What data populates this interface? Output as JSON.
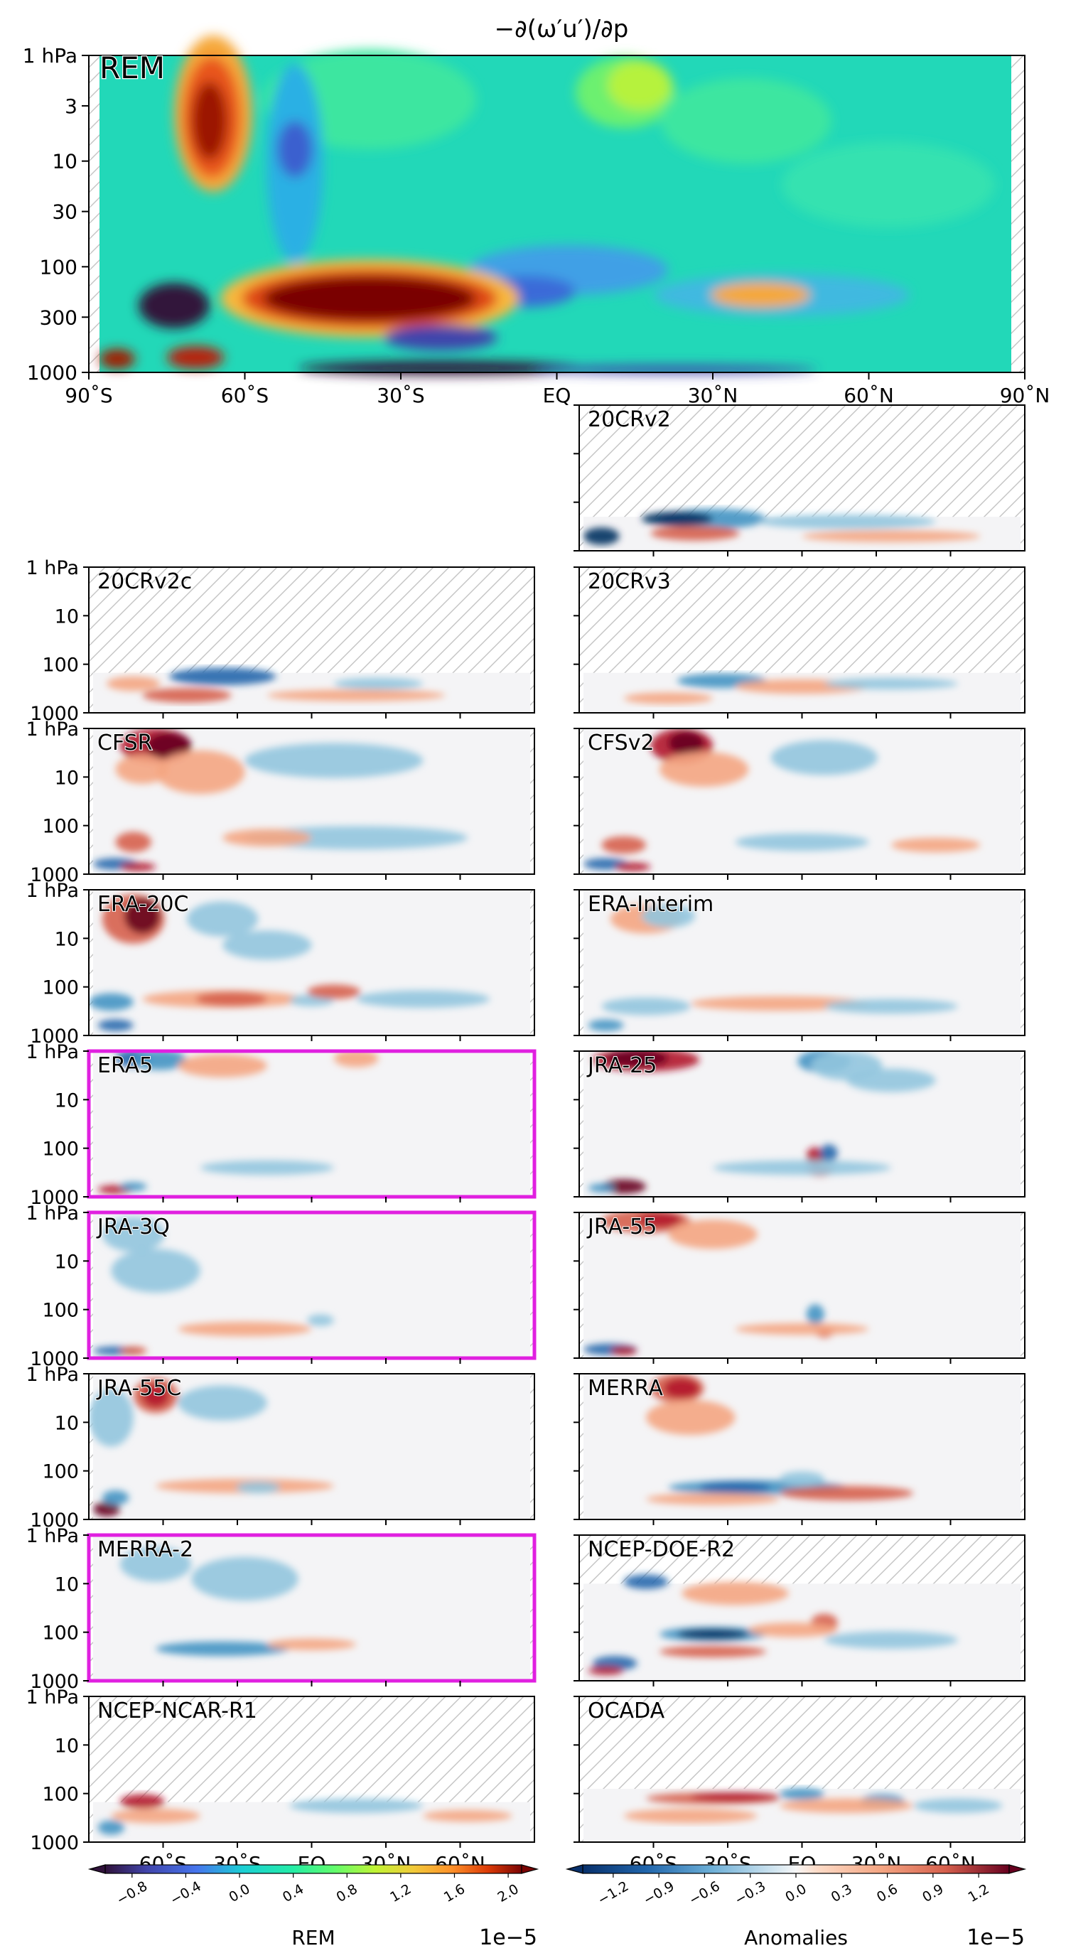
{
  "chart_data": {
    "type": "heatmap",
    "title": "−∂(ω′u′)/∂p",
    "main_panel": {
      "label": "REM",
      "label_color": "#e020e0",
      "yticks": [
        "1 hPa",
        "3",
        "10",
        "30",
        "100",
        "300",
        "1000"
      ],
      "yticks_values": [
        1,
        3,
        10,
        30,
        100,
        300,
        1000
      ],
      "xticks": [
        "90˚S",
        "60˚S",
        "30˚S",
        "EQ",
        "30˚N",
        "60˚N",
        "90˚N"
      ],
      "xticks_values": [
        -90,
        -60,
        -30,
        0,
        30,
        60,
        90
      ],
      "ylim": [
        1000,
        1
      ],
      "xlim": [
        -90,
        90
      ],
      "log_y": true
    },
    "panels": [
      {
        "name": "20CRv2",
        "top_hpa": 200,
        "highlight": false
      },
      {
        "name": "20CRv2c",
        "top_hpa": 150,
        "highlight": false
      },
      {
        "name": "20CRv3",
        "top_hpa": 150,
        "highlight": false
      },
      {
        "name": "CFSR",
        "top_hpa": 1,
        "highlight": false
      },
      {
        "name": "CFSv2",
        "top_hpa": 1,
        "highlight": false
      },
      {
        "name": "ERA-20C",
        "top_hpa": 1,
        "highlight": false
      },
      {
        "name": "ERA-Interim",
        "top_hpa": 1,
        "highlight": false
      },
      {
        "name": "ERA5",
        "top_hpa": 1,
        "highlight": true
      },
      {
        "name": "JRA-25",
        "top_hpa": 1,
        "highlight": false
      },
      {
        "name": "JRA-3Q",
        "top_hpa": 1,
        "highlight": true
      },
      {
        "name": "JRA-55",
        "top_hpa": 1,
        "highlight": false
      },
      {
        "name": "JRA-55C",
        "top_hpa": 1,
        "highlight": false
      },
      {
        "name": "MERRA",
        "top_hpa": 1,
        "highlight": false
      },
      {
        "name": "MERRA-2",
        "top_hpa": 1,
        "highlight": true
      },
      {
        "name": "NCEP-DOE-R2",
        "top_hpa": 10,
        "highlight": false
      },
      {
        "name": "NCEP-NCAR-R1",
        "top_hpa": 150,
        "highlight": false
      },
      {
        "name": "OCADA",
        "top_hpa": 80,
        "highlight": false
      }
    ],
    "small_yticks": [
      "1 hPa",
      "10",
      "100",
      "1000"
    ],
    "small_xticks": [
      "60˚S",
      "30˚S",
      "EQ",
      "30˚N",
      "60˚N"
    ],
    "colorbars": [
      {
        "label": "REM",
        "exponent": "1e−5",
        "ticks": [
          "−0.8",
          "−0.4",
          "0.0",
          "0.4",
          "0.8",
          "1.2",
          "1.6",
          "2.0"
        ],
        "range": [
          -1.0,
          2.1
        ],
        "extend": "both"
      },
      {
        "label": "Anomalies",
        "exponent": "1e−5",
        "ticks": [
          "−1.2",
          "−0.9",
          "−0.6",
          "−0.3",
          "0.0",
          "0.3",
          "0.6",
          "0.9",
          "1.2"
        ],
        "range": [
          -1.4,
          1.4
        ],
        "extend": "both"
      }
    ],
    "colors": {
      "highlight": "#e020e0",
      "hatch": "#bbbbbb",
      "neutral": "#f2f2f2",
      "main_bg": "#22d8b8"
    }
  }
}
